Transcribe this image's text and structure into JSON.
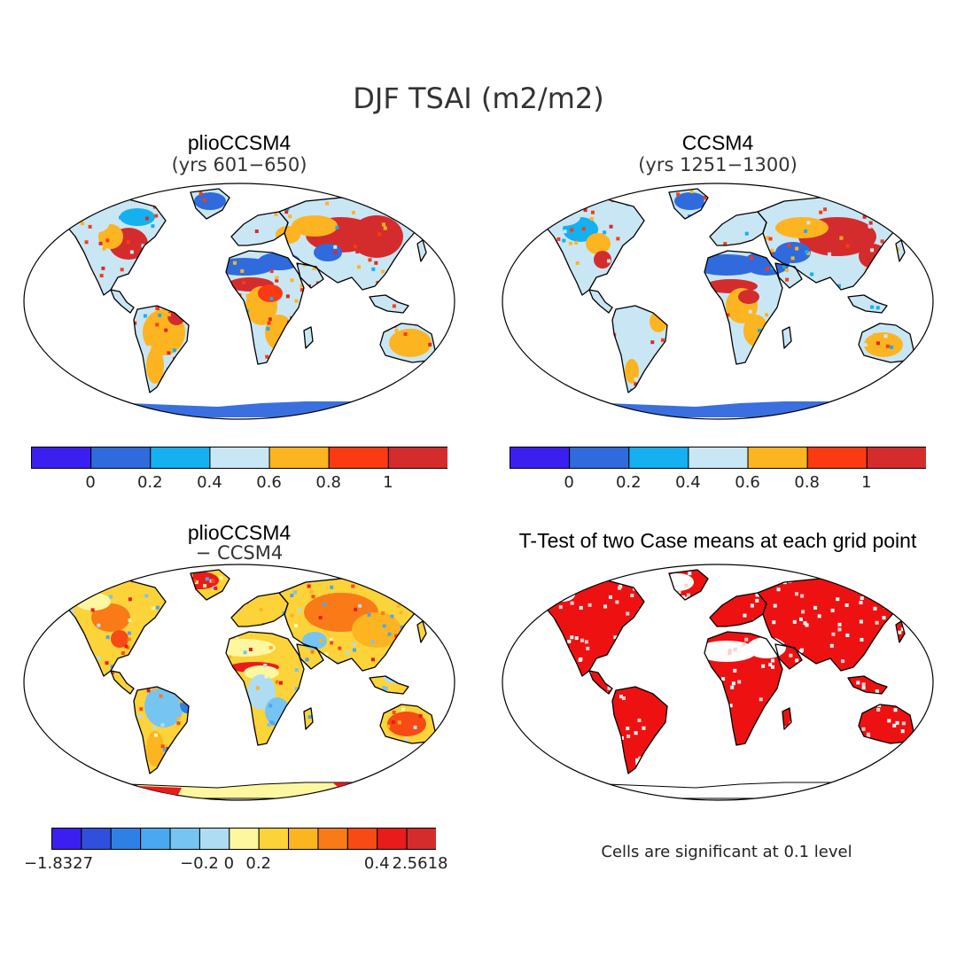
{
  "title": "DJF TSAI (m2/m2)",
  "panels": [
    {
      "title": "plioCCSM4",
      "subtitle": "(yrs 601−650)"
    },
    {
      "title": "CCSM4",
      "subtitle": "(yrs 1251−1300)"
    },
    {
      "title": "plioCCSM4",
      "subtitle": "− CCSM4"
    },
    {
      "title": "T-Test of two Case means at each grid point",
      "subtitle": ""
    }
  ],
  "colorbar_top": {
    "colors": [
      "#3a1ff0",
      "#2f6bdc",
      "#14b0f0",
      "#c9e6f4",
      "#fdb421",
      "#fb3a12",
      "#d42c2c"
    ],
    "labels": [
      "0",
      "0.2",
      "0.4",
      "0.6",
      "0.8",
      "1"
    ]
  },
  "colorbar_diff": {
    "colors": [
      "#3a1ff0",
      "#2f4fdc",
      "#2f80e6",
      "#4aa8f0",
      "#76c4f2",
      "#aedcf2",
      "#fdf7a0",
      "#fdd33a",
      "#fdb421",
      "#fa7a17",
      "#f84a14",
      "#ea1b1b",
      "#d42c2c"
    ],
    "labels": [
      "−1.8327",
      "−0.2",
      "0",
      "0.2",
      "0.4",
      "2.5618"
    ]
  },
  "significance_note": "Cells are significant at 0.1 level",
  "map_colors": {
    "ocean": "#ffffff",
    "antarctica_abs": "#3a6fe0",
    "antarctica_diff": "#fdf7a0",
    "significant": "#ee1111"
  }
}
